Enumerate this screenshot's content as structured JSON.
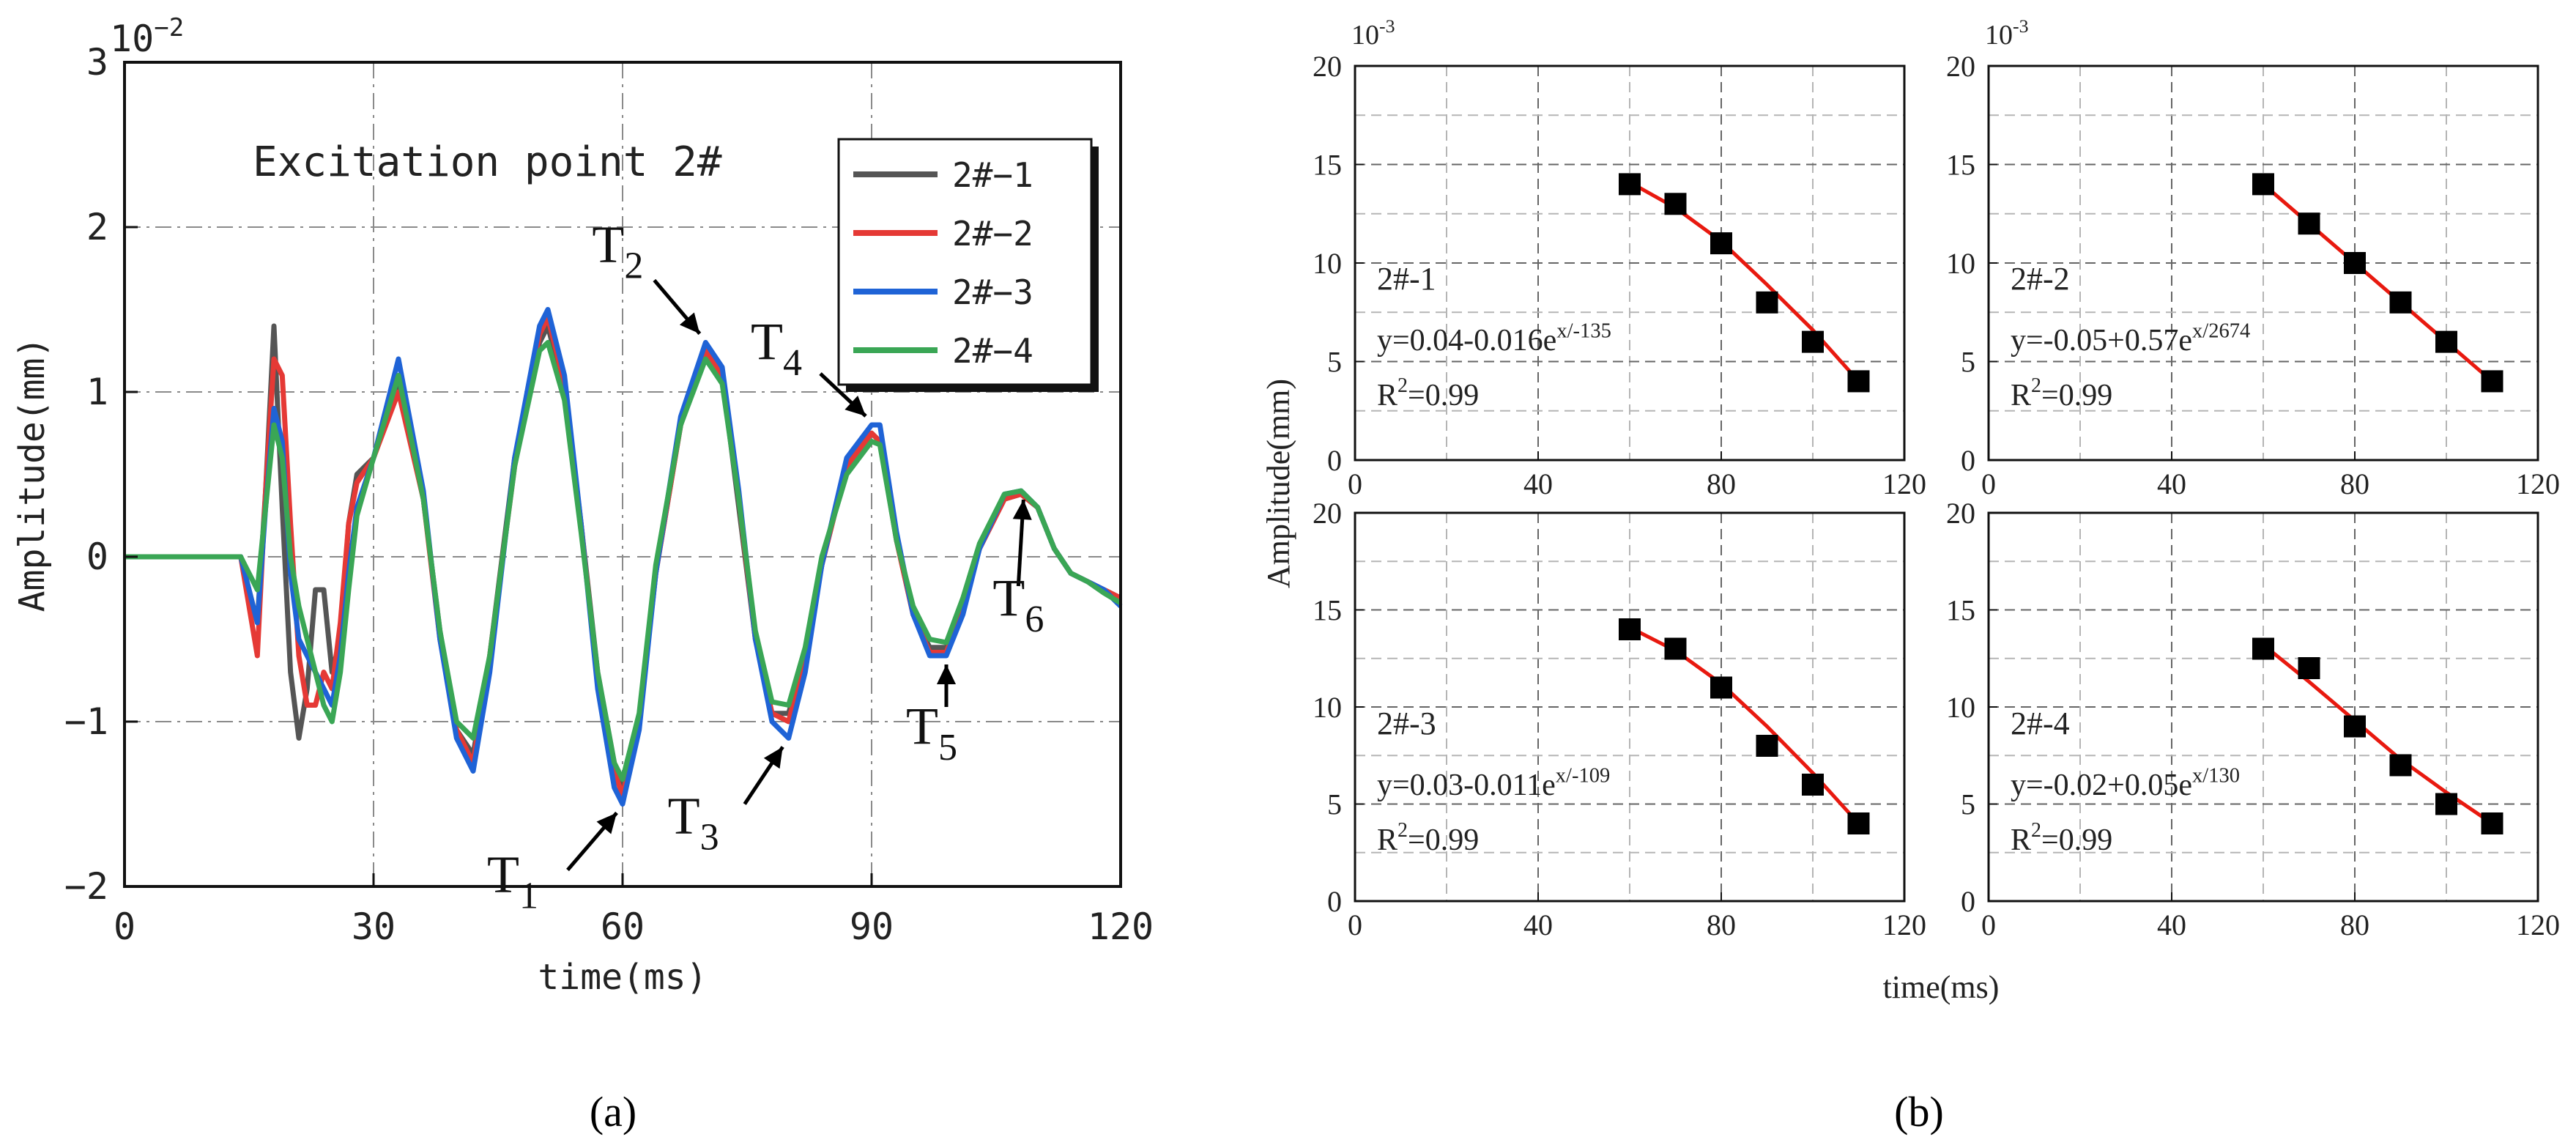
{
  "figure": {
    "label_a": "(a)",
    "label_b": "(b)"
  },
  "chart_data": [
    {
      "id": "a",
      "type": "line",
      "title": "Excitation point 2#",
      "xlabel": "time(ms)",
      "ylabel": "Amplitude(mm)",
      "y_scale_label": "10",
      "y_scale_exp": "−2",
      "xlim": [
        0,
        120
      ],
      "ylim": [
        -2,
        3
      ],
      "xticks": [
        0,
        30,
        60,
        90,
        120
      ],
      "xtick_labels": [
        "0",
        "30",
        "60",
        "90",
        "120"
      ],
      "yticks": [
        -2,
        -1,
        0,
        1,
        2,
        3
      ],
      "ytick_labels": [
        "−2",
        "−1",
        "0",
        "1",
        "2",
        "3"
      ],
      "grid": true,
      "legend_position": "top-right",
      "series": [
        {
          "name": "2#−1",
          "color": "#555555",
          "x": [
            0,
            14,
            15,
            16,
            17,
            18,
            19,
            20,
            21,
            22,
            23,
            24,
            25,
            26,
            27,
            28,
            30,
            33,
            36,
            38,
            40,
            42,
            44,
            47,
            50,
            51,
            53,
            55,
            57,
            59,
            60,
            62,
            64,
            67,
            70,
            72,
            74,
            76,
            78,
            80,
            82,
            84,
            87,
            90,
            91,
            93,
            95,
            97,
            99,
            101,
            103,
            106,
            108,
            110,
            112,
            114,
            116,
            118,
            120
          ],
          "y": [
            0,
            0,
            -0.2,
            -0.4,
            0.4,
            1.4,
            0.3,
            -0.7,
            -1.1,
            -0.8,
            -0.2,
            -0.2,
            -0.7,
            -0.5,
            0.2,
            0.5,
            0.6,
            1.05,
            0.35,
            -0.45,
            -1.05,
            -1.2,
            -0.6,
            0.6,
            1.3,
            1.4,
            1.0,
            0.2,
            -0.7,
            -1.25,
            -1.4,
            -1.0,
            -0.1,
            0.8,
            1.25,
            1.1,
            0.3,
            -0.5,
            -0.95,
            -0.95,
            -0.6,
            -0.05,
            0.55,
            0.75,
            0.7,
            0.1,
            -0.35,
            -0.55,
            -0.55,
            -0.3,
            0.05,
            0.35,
            0.38,
            0.3,
            0.05,
            -0.1,
            -0.15,
            -0.2,
            -0.25
          ]
        },
        {
          "name": "2#−2",
          "color": "#e53935",
          "x": [
            0,
            14,
            15,
            16,
            17,
            18,
            19,
            20,
            21,
            22,
            23,
            24,
            25,
            26,
            27,
            28,
            30,
            33,
            36,
            38,
            40,
            42,
            44,
            47,
            50,
            51,
            53,
            55,
            57,
            59,
            60,
            62,
            64,
            67,
            70,
            72,
            74,
            76,
            78,
            80,
            82,
            84,
            87,
            90,
            91,
            93,
            95,
            97,
            99,
            101,
            103,
            106,
            108,
            110,
            112,
            114,
            116,
            118,
            120
          ],
          "y": [
            0,
            0,
            -0.3,
            -0.6,
            0.4,
            1.2,
            1.1,
            0.2,
            -0.6,
            -0.9,
            -0.9,
            -0.7,
            -0.8,
            -0.4,
            0.2,
            0.45,
            0.6,
            1.0,
            0.35,
            -0.5,
            -1.05,
            -1.25,
            -0.6,
            0.55,
            1.35,
            1.45,
            1.05,
            0.2,
            -0.75,
            -1.3,
            -1.45,
            -1.0,
            -0.1,
            0.8,
            1.25,
            1.1,
            0.35,
            -0.5,
            -0.95,
            -1.0,
            -0.6,
            -0.05,
            0.55,
            0.75,
            0.7,
            0.1,
            -0.35,
            -0.58,
            -0.58,
            -0.3,
            0.05,
            0.35,
            0.38,
            0.3,
            0.05,
            -0.1,
            -0.15,
            -0.2,
            -0.25
          ]
        },
        {
          "name": "2#−3",
          "color": "#1f63d6",
          "x": [
            0,
            14,
            15,
            16,
            17,
            18,
            19,
            20,
            21,
            22,
            23,
            24,
            25,
            26,
            27,
            28,
            30,
            33,
            36,
            38,
            40,
            42,
            44,
            47,
            50,
            51,
            53,
            55,
            57,
            59,
            60,
            62,
            64,
            67,
            70,
            72,
            74,
            76,
            78,
            80,
            82,
            84,
            87,
            90,
            91,
            93,
            95,
            97,
            99,
            101,
            103,
            106,
            108,
            110,
            112,
            114,
            116,
            118,
            120
          ],
          "y": [
            0,
            0,
            -0.2,
            -0.4,
            0.3,
            0.9,
            0.7,
            -0.1,
            -0.5,
            -0.6,
            -0.7,
            -0.8,
            -0.9,
            -0.6,
            -0.1,
            0.3,
            0.6,
            1.2,
            0.4,
            -0.5,
            -1.1,
            -1.3,
            -0.7,
            0.6,
            1.4,
            1.5,
            1.1,
            0.2,
            -0.8,
            -1.4,
            -1.5,
            -1.05,
            -0.1,
            0.85,
            1.3,
            1.15,
            0.4,
            -0.5,
            -1.0,
            -1.1,
            -0.7,
            -0.05,
            0.6,
            0.8,
            0.8,
            0.15,
            -0.35,
            -0.6,
            -0.6,
            -0.35,
            0.05,
            0.38,
            0.4,
            0.3,
            0.05,
            -0.1,
            -0.15,
            -0.2,
            -0.3
          ]
        },
        {
          "name": "2#−4",
          "color": "#3aa655",
          "x": [
            0,
            14,
            15,
            16,
            17,
            18,
            19,
            20,
            21,
            22,
            23,
            24,
            25,
            26,
            27,
            28,
            30,
            33,
            36,
            38,
            40,
            42,
            44,
            47,
            50,
            51,
            53,
            55,
            57,
            59,
            60,
            62,
            64,
            67,
            70,
            72,
            74,
            76,
            78,
            80,
            82,
            84,
            87,
            90,
            91,
            93,
            95,
            97,
            99,
            101,
            103,
            106,
            108,
            110,
            112,
            114,
            116,
            118,
            120
          ],
          "y": [
            0,
            0,
            -0.1,
            -0.2,
            0.3,
            0.8,
            0.6,
            0.0,
            -0.3,
            -0.5,
            -0.7,
            -0.9,
            -1.0,
            -0.7,
            -0.2,
            0.25,
            0.6,
            1.1,
            0.35,
            -0.45,
            -1.0,
            -1.1,
            -0.6,
            0.55,
            1.25,
            1.3,
            0.95,
            0.15,
            -0.7,
            -1.25,
            -1.35,
            -0.95,
            -0.05,
            0.8,
            1.2,
            1.05,
            0.35,
            -0.45,
            -0.88,
            -0.9,
            -0.55,
            0.0,
            0.5,
            0.7,
            0.68,
            0.1,
            -0.3,
            -0.5,
            -0.52,
            -0.25,
            0.08,
            0.38,
            0.4,
            0.3,
            0.05,
            -0.1,
            -0.15,
            -0.22,
            -0.28
          ]
        }
      ],
      "annotations": [
        {
          "label": "T",
          "sub": "1",
          "target": [
            60,
            -1.5
          ]
        },
        {
          "label": "T",
          "sub": "2",
          "target": [
            70,
            1.3
          ]
        },
        {
          "label": "T",
          "sub": "3",
          "target": [
            80,
            -1.1
          ]
        },
        {
          "label": "T",
          "sub": "4",
          "target": [
            90,
            0.8
          ]
        },
        {
          "label": "T",
          "sub": "5",
          "target": [
            99,
            -0.6
          ]
        },
        {
          "label": "T",
          "sub": "6",
          "target": [
            109,
            0.4
          ]
        }
      ]
    },
    {
      "id": "b1",
      "type": "scatter",
      "series_label": "2#-1",
      "equation_main": "y=0.04-0.016e",
      "equation_exp": "x/-135",
      "r2_label": "R",
      "r2_exp": "2",
      "r2_value": "=0.99",
      "y_scale_label": "10",
      "y_scale_exp": "-3",
      "xlim": [
        0,
        120
      ],
      "ylim": [
        0,
        20
      ],
      "xticks": [
        0,
        40,
        80,
        120
      ],
      "xtick_labels": [
        "0",
        "40",
        "80",
        "120"
      ],
      "yticks": [
        0,
        5,
        10,
        15,
        20
      ],
      "ytick_labels": [
        "0",
        "5",
        "10",
        "15",
        "20"
      ],
      "points_x": [
        60,
        70,
        80,
        90,
        100,
        110
      ],
      "points_y": [
        14,
        13,
        11,
        8,
        6,
        4
      ],
      "fit_x": [
        60,
        70,
        80,
        90,
        100,
        110
      ],
      "fit_y": [
        14.1,
        12.8,
        11.1,
        8.9,
        6.6,
        4.0
      ],
      "marker_color": "#000000",
      "fit_color": "#e8190f"
    },
    {
      "id": "b2",
      "type": "scatter",
      "series_label": "2#-2",
      "equation_main": "y=-0.05+0.57e",
      "equation_exp": "x/2674",
      "r2_label": "R",
      "r2_exp": "2",
      "r2_value": "=0.99",
      "y_scale_label": "10",
      "y_scale_exp": "-3",
      "xlim": [
        0,
        120
      ],
      "ylim": [
        0,
        20
      ],
      "xticks": [
        0,
        40,
        80,
        120
      ],
      "xtick_labels": [
        "0",
        "40",
        "80",
        "120"
      ],
      "yticks": [
        0,
        5,
        10,
        15,
        20
      ],
      "ytick_labels": [
        "0",
        "5",
        "10",
        "15",
        "20"
      ],
      "points_x": [
        60,
        70,
        80,
        90,
        100,
        110
      ],
      "points_y": [
        14,
        12,
        10,
        8,
        6,
        4
      ],
      "fit_x": [
        60,
        110
      ],
      "fit_y": [
        14,
        4
      ],
      "marker_color": "#000000",
      "fit_color": "#e8190f"
    },
    {
      "id": "b3",
      "type": "scatter",
      "series_label": "2#-3",
      "equation_main": "y=0.03-0.011e",
      "equation_exp": "x/-109",
      "r2_label": "R",
      "r2_exp": "2",
      "r2_value": "=0.99",
      "xlim": [
        0,
        120
      ],
      "ylim": [
        0,
        20
      ],
      "xticks": [
        0,
        40,
        80,
        120
      ],
      "xtick_labels": [
        "0",
        "40",
        "80",
        "120"
      ],
      "yticks": [
        0,
        5,
        10,
        15,
        20
      ],
      "ytick_labels": [
        "0",
        "5",
        "10",
        "15",
        "20"
      ],
      "points_x": [
        60,
        70,
        80,
        90,
        100,
        110
      ],
      "points_y": [
        14,
        13,
        11,
        8,
        6,
        4
      ],
      "fit_x": [
        60,
        70,
        80,
        90,
        100,
        110
      ],
      "fit_y": [
        14.1,
        12.9,
        11.2,
        9.0,
        6.6,
        4.0
      ],
      "marker_color": "#000000",
      "fit_color": "#e8190f"
    },
    {
      "id": "b4",
      "type": "scatter",
      "series_label": "2#-4",
      "equation_main": "y=-0.02+0.05e",
      "equation_exp": "x/130",
      "r2_label": "R",
      "r2_exp": "2",
      "r2_value": "=0.99",
      "xlim": [
        0,
        120
      ],
      "ylim": [
        0,
        20
      ],
      "xticks": [
        0,
        40,
        80,
        120
      ],
      "xtick_labels": [
        "0",
        "40",
        "80",
        "120"
      ],
      "yticks": [
        0,
        5,
        10,
        15,
        20
      ],
      "ytick_labels": [
        "0",
        "5",
        "10",
        "15",
        "20"
      ],
      "points_x": [
        60,
        70,
        80,
        90,
        100,
        110
      ],
      "points_y": [
        13,
        12,
        9,
        7,
        5,
        4
      ],
      "fit_x": [
        60,
        70,
        80,
        90,
        100,
        110
      ],
      "fit_y": [
        13.2,
        11.3,
        9.3,
        7.3,
        5.6,
        4.0
      ],
      "marker_color": "#000000",
      "fit_color": "#e8190f"
    }
  ],
  "panel_b_labels": {
    "ylabel": "Amplitude(mm)",
    "xlabel": "time(ms)"
  }
}
